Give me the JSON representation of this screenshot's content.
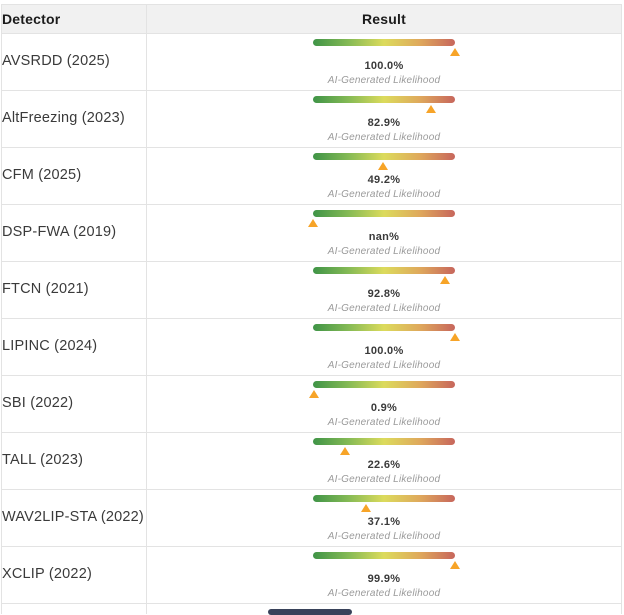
{
  "table": {
    "header": {
      "detector": "Detector",
      "result": "Result"
    },
    "caption_label": "AI-Generated Likelihood",
    "rows": [
      {
        "detector": "AVSRDD (2025)",
        "value": "100.0%",
        "percent": 100
      },
      {
        "detector": "AltFreezing (2023)",
        "value": "82.9%",
        "percent": 82.9
      },
      {
        "detector": "CFM (2025)",
        "value": "49.2%",
        "percent": 49.2
      },
      {
        "detector": "DSP-FWA (2019)",
        "value": "nan%",
        "percent": 0
      },
      {
        "detector": "FTCN (2021)",
        "value": "92.8%",
        "percent": 92.8
      },
      {
        "detector": "LIPINC (2024)",
        "value": "100.0%",
        "percent": 100
      },
      {
        "detector": "SBI (2022)",
        "value": "0.9%",
        "percent": 0.9
      },
      {
        "detector": "TALL (2023)",
        "value": "22.6%",
        "percent": 22.6
      },
      {
        "detector": "WAV2LIP-STA (2022)",
        "value": "37.1%",
        "percent": 37.1
      },
      {
        "detector": "XCLIP (2022)",
        "value": "99.9%",
        "percent": 99.9
      }
    ]
  },
  "gauge": {
    "gradient": [
      "#3f9447",
      "#85ba55",
      "#dcdb5c",
      "#dfa95c",
      "#c7665c"
    ],
    "marker_color": "#f7a428"
  },
  "scrollbar": {
    "thumb_color": "#39425a"
  },
  "colors": {
    "header_bg": "#f1f1f1",
    "border": "#e3e3e3",
    "text_dark": "#3a3a3a",
    "caption_gray": "#9a9a9a"
  }
}
